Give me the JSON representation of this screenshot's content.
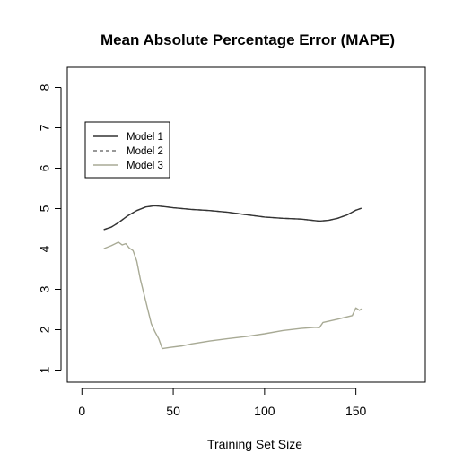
{
  "chart_data": {
    "type": "line",
    "title": "Mean Absolute Percentage Error (MAPE)",
    "xlabel": "Training Set Size",
    "ylabel": "",
    "xlim": [
      -8,
      188
    ],
    "ylim": [
      0.7,
      8.5
    ],
    "x_ticks": [
      0,
      50,
      100,
      150
    ],
    "y_ticks": [
      1,
      2,
      3,
      4,
      5,
      6,
      7,
      8
    ],
    "grid": false,
    "legend_position": "top-left",
    "series": [
      {
        "name": "Model 1",
        "color": "#333333",
        "dash": "solid",
        "x": [
          12,
          16,
          20,
          25,
          30,
          35,
          40,
          45,
          50,
          60,
          70,
          80,
          90,
          100,
          110,
          120,
          130,
          135,
          140,
          145,
          150,
          153
        ],
        "y": [
          4.48,
          4.54,
          4.65,
          4.82,
          4.95,
          5.04,
          5.07,
          5.05,
          5.02,
          4.98,
          4.95,
          4.91,
          4.85,
          4.79,
          4.76,
          4.74,
          4.69,
          4.71,
          4.76,
          4.84,
          4.96,
          5.01
        ]
      },
      {
        "name": "Model 2",
        "color": "#777777",
        "dash": "dashed",
        "x": [
          12,
          16,
          20,
          25,
          30,
          35,
          40,
          45,
          50,
          60,
          70,
          80,
          90,
          100,
          110,
          120,
          130,
          135,
          140,
          145,
          150,
          153
        ],
        "y": [
          4.48,
          4.54,
          4.65,
          4.82,
          4.95,
          5.04,
          5.07,
          5.05,
          5.02,
          4.98,
          4.95,
          4.91,
          4.85,
          4.79,
          4.76,
          4.74,
          4.69,
          4.71,
          4.76,
          4.84,
          4.96,
          5.01
        ]
      },
      {
        "name": "Model 3",
        "color": "#a8aa95",
        "dash": "solid",
        "x": [
          12,
          16,
          20,
          22,
          24,
          26,
          28,
          30,
          32,
          35,
          38,
          40,
          42,
          44,
          48,
          55,
          60,
          70,
          80,
          90,
          100,
          110,
          120,
          128,
          130,
          132,
          140,
          148,
          150,
          152,
          153
        ],
        "y": [
          4.01,
          4.08,
          4.17,
          4.1,
          4.13,
          4.02,
          3.96,
          3.7,
          3.25,
          2.7,
          2.15,
          1.95,
          1.78,
          1.53,
          1.56,
          1.6,
          1.65,
          1.72,
          1.78,
          1.83,
          1.9,
          1.98,
          2.03,
          2.06,
          2.05,
          2.18,
          2.26,
          2.35,
          2.54,
          2.48,
          2.52
        ]
      }
    ]
  }
}
